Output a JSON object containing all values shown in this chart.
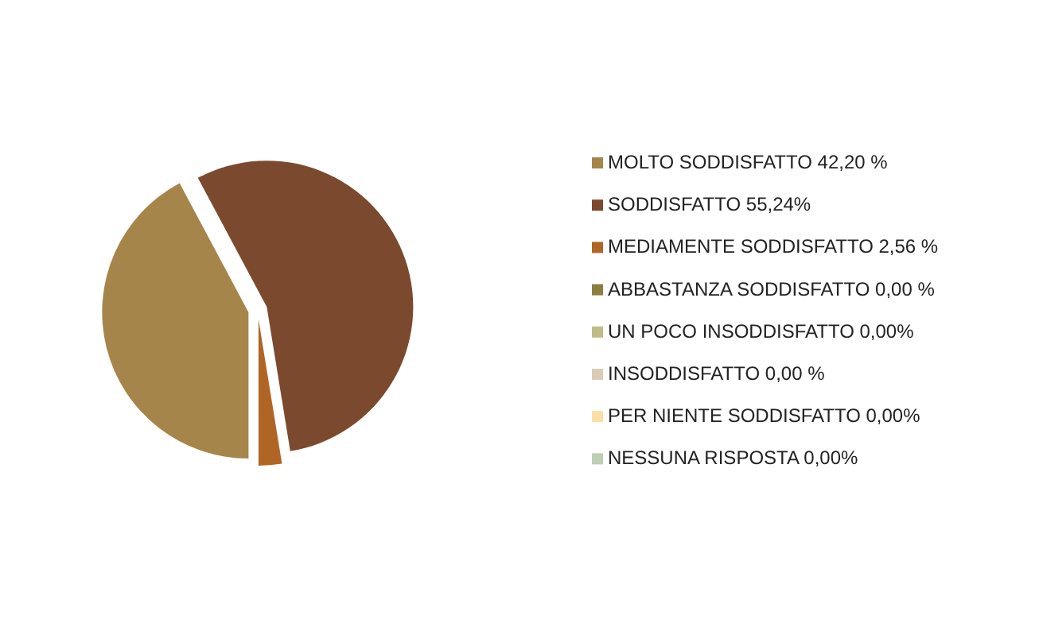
{
  "chart_data": {
    "type": "pie",
    "categories": [
      "MOLTO SODDISFATTO 42,20 %",
      "SODDISFATTO 55,24%",
      "MEDIAMENTE SODDISFATTO 2,56 %",
      "ABBASTANZA SODDISFATTO 0,00 %",
      "UN POCO INSODDISFATTO 0,00%",
      "INSODDISFATTO 0,00 %",
      "PER NIENTE SODDISFATTO 0,00%",
      "NESSUNA RISPOSTA 0,00%"
    ],
    "values": [
      42.2,
      55.24,
      2.56,
      0,
      0,
      0,
      0,
      0
    ],
    "colors": [
      "#a6854a",
      "#7b4a2e",
      "#b06525",
      "#8a7f3f",
      "#bfbd85",
      "#dccbb5",
      "#fbdfa5",
      "#bccfb0"
    ],
    "legend": "right"
  }
}
